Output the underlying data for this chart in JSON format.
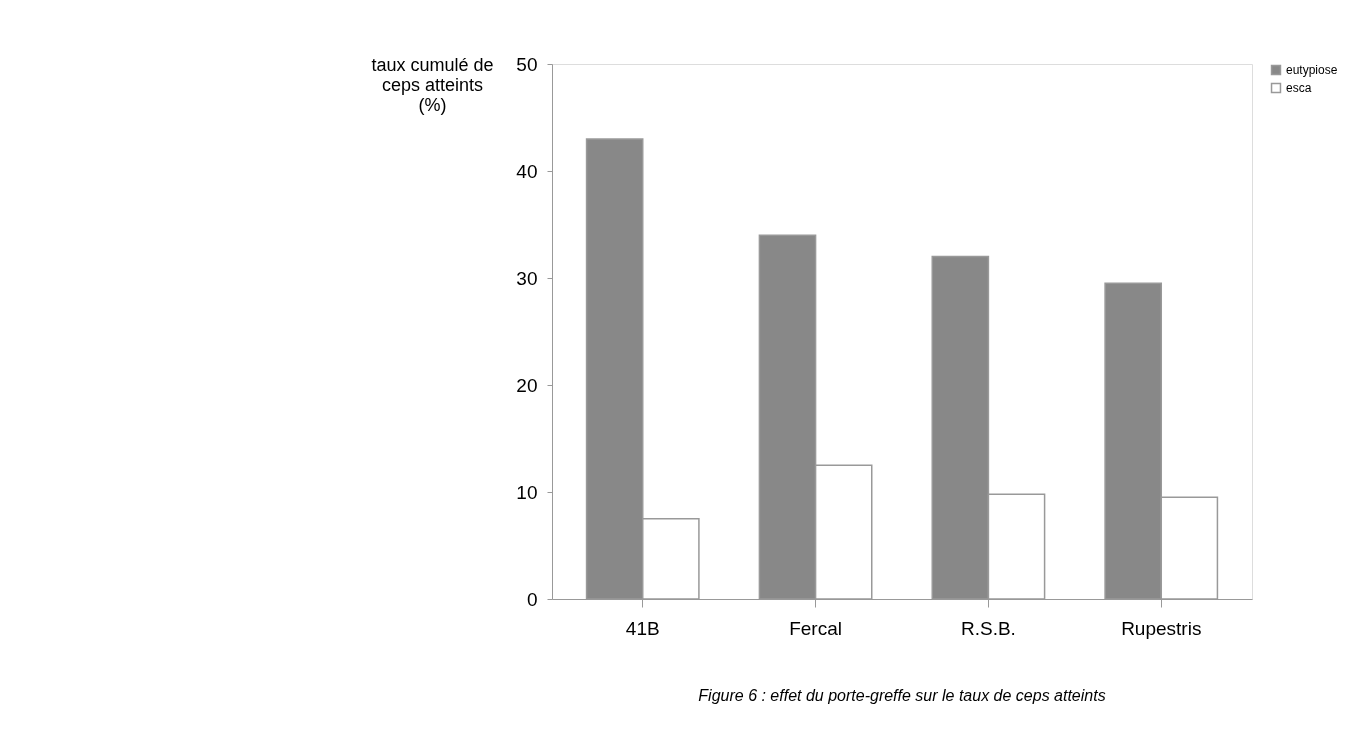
{
  "chart_data": {
    "type": "bar",
    "ylabel": "taux cumulé de\nceps atteints\n(%)",
    "categories": [
      "41B",
      "Fercal",
      "R.S.B.",
      "Rupestris"
    ],
    "series": [
      {
        "name": "eutypiose",
        "color": "#888888",
        "values": [
          43,
          34,
          32,
          29.5
        ]
      },
      {
        "name": "esca",
        "color": "#ffffff",
        "values": [
          7.5,
          12.5,
          9.8,
          9.5
        ]
      }
    ],
    "ylim": [
      0,
      50
    ],
    "yticks": [
      0,
      10,
      20,
      30,
      40,
      50
    ],
    "grid": false,
    "legend": "right",
    "annotations": [
      "Figure 6  : effet du porte-greffe sur le taux de ceps atteints"
    ]
  }
}
